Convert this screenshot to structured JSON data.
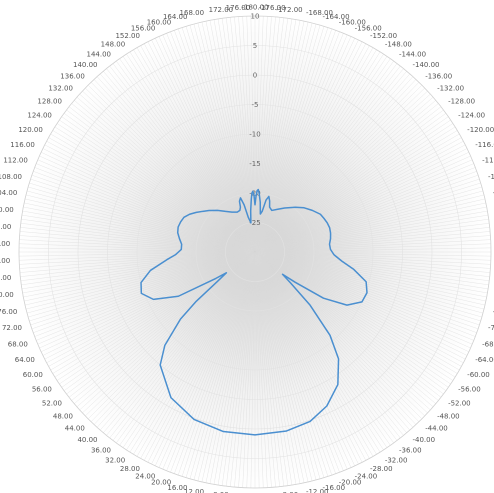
{
  "chart_data": {
    "type": "line",
    "subtype": "polar",
    "title": "",
    "theta_direction": "clockwise",
    "theta_zero": "bottom",
    "theta_tick_step_deg": 4,
    "radial_axis": {
      "min": -30,
      "max": 10,
      "ticks": [
        -25,
        -20,
        -15,
        -10,
        -5,
        0,
        5,
        10
      ],
      "tick_labels": [
        "-25",
        "-20",
        "-15",
        "-10",
        "-5",
        "0",
        "5",
        "10"
      ],
      "outer_label": "-180.00"
    },
    "grid": true,
    "series": [
      {
        "color": "#4a8fd0",
        "points": [
          [
            0,
            1
          ],
          [
            10,
            0.9
          ],
          [
            20,
            0.2
          ],
          [
            30,
            -1.5
          ],
          [
            40,
            -5
          ],
          [
            44,
            -8
          ],
          [
            48,
            -13
          ],
          [
            50,
            -17
          ],
          [
            52,
            -22
          ],
          [
            54,
            -24
          ],
          [
            56,
            -22
          ],
          [
            60,
            -15
          ],
          [
            65,
            -11
          ],
          [
            70,
            -9.5
          ],
          [
            75,
            -10
          ],
          [
            80,
            -12
          ],
          [
            85,
            -15
          ],
          [
            88,
            -16.5
          ],
          [
            92,
            -17.5
          ],
          [
            96,
            -17.5
          ],
          [
            100,
            -17
          ],
          [
            104,
            -16.5
          ],
          [
            108,
            -16.3
          ],
          [
            112,
            -16.4
          ],
          [
            116,
            -16.6
          ],
          [
            120,
            -17.2
          ],
          [
            124,
            -18
          ],
          [
            128,
            -18.8
          ],
          [
            132,
            -19.5
          ],
          [
            138,
            -20.5
          ],
          [
            144,
            -21.5
          ],
          [
            150,
            -22.2
          ],
          [
            156,
            -22.6
          ],
          [
            160,
            -22.5
          ],
          [
            162,
            -22
          ],
          [
            163,
            -21
          ],
          [
            165,
            -20.5
          ],
          [
            167,
            -21.8
          ],
          [
            169,
            -24
          ],
          [
            172,
            -25
          ],
          [
            174,
            -23
          ],
          [
            176,
            -21
          ],
          [
            177,
            -20
          ],
          [
            178,
            -19.7
          ],
          [
            179,
            -20.4
          ],
          [
            180,
            -22
          ],
          [
            181,
            -20.6
          ],
          [
            182,
            -19.6
          ],
          [
            183,
            -19.4
          ],
          [
            184,
            -20
          ],
          [
            186,
            -21.5
          ],
          [
            188,
            -23.5
          ],
          [
            190,
            -23
          ],
          [
            192,
            -21
          ],
          [
            194,
            -20.3
          ],
          [
            196,
            -21
          ],
          [
            198,
            -22
          ],
          [
            202,
            -22.4
          ],
          [
            208,
            -21.8
          ],
          [
            214,
            -21
          ],
          [
            222,
            -19.8
          ],
          [
            228,
            -18.8
          ],
          [
            234,
            -18
          ],
          [
            240,
            -17.2
          ],
          [
            244,
            -17
          ],
          [
            248,
            -16.8
          ],
          [
            252,
            -16.7
          ],
          [
            256,
            -16.8
          ],
          [
            260,
            -17
          ],
          [
            264,
            -17.3
          ],
          [
            268,
            -17.2
          ],
          [
            272,
            -16.6
          ],
          [
            276,
            -15.2
          ],
          [
            280,
            -13
          ],
          [
            285,
            -10.5
          ],
          [
            290,
            -9.8
          ],
          [
            295,
            -10
          ],
          [
            300,
            -12
          ],
          [
            304,
            -16
          ],
          [
            307,
            -21.5
          ],
          [
            309,
            -24
          ],
          [
            311,
            -22
          ],
          [
            314,
            -17
          ],
          [
            318,
            -11
          ],
          [
            322,
            -7
          ],
          [
            328,
            -3.5
          ],
          [
            335,
            -1.2
          ],
          [
            342,
            0.2
          ],
          [
            350,
            0.8
          ],
          [
            360,
            1
          ]
        ]
      }
    ]
  }
}
